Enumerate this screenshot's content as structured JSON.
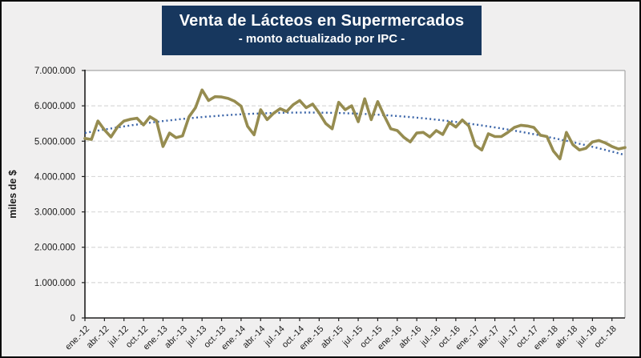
{
  "chart_data": {
    "type": "line",
    "title": "Venta de Lácteos en Supermercados",
    "subtitle": "- monto actualizado por IPC -",
    "ylabel": "miles de $",
    "ylim": [
      0,
      7000000
    ],
    "ytick_step": 1000000,
    "ytick_labels": [
      "0",
      "1.000.000",
      "2.000.000",
      "3.000.000",
      "4.000.000",
      "5.000.000",
      "6.000.000",
      "7.000.000"
    ],
    "xtick_labels": [
      "ene.-12",
      "abr.-12",
      "jul.-12",
      "oct.-12",
      "ene.-13",
      "abr.-13",
      "jul.-13",
      "oct.-13",
      "ene.-14",
      "abr.-14",
      "jul.-14",
      "oct.-14",
      "ene.-15",
      "abr.-15",
      "jul.-15",
      "oct.-15",
      "ene.-16",
      "abr.-16",
      "jul.-16",
      "oct.-16",
      "ene.-17",
      "abr.-17",
      "jul.-17",
      "oct.-17",
      "ene.-18",
      "abr.-18",
      "jul.-18",
      "oct.-18"
    ],
    "xtick_label_interval_months": 3,
    "x_months_start": "ene-12",
    "x_months_end": "dic-18",
    "grid": "horizontal-dashed",
    "legend": "none",
    "series": [
      {
        "id": "venta-lacteos-actualizada-ipc",
        "color": "#968C50",
        "values_miles_de_pesos": [
          5080,
          5050,
          5570,
          5320,
          5120,
          5400,
          5570,
          5620,
          5650,
          5460,
          5690,
          5580,
          4850,
          5230,
          5100,
          5150,
          5690,
          5950,
          6450,
          6150,
          6260,
          6250,
          6210,
          6130,
          5990,
          5420,
          5180,
          5890,
          5610,
          5790,
          5920,
          5840,
          6030,
          6150,
          5950,
          6050,
          5800,
          5500,
          5350,
          6100,
          5890,
          6000,
          5550,
          6200,
          5610,
          6120,
          5720,
          5350,
          5300,
          5110,
          4980,
          5230,
          5250,
          5120,
          5300,
          5190,
          5530,
          5400,
          5600,
          5430,
          4880,
          4750,
          5210,
          5130,
          5130,
          5250,
          5390,
          5450,
          5430,
          5390,
          5170,
          5130,
          4720,
          4500,
          5250,
          4900,
          4750,
          4800,
          4980,
          5020,
          4950,
          4850,
          4780,
          4820
        ],
        "values_scale_note": "axis shows values x1000 (miles de $); plotted values are value*1000 on the 0-7.000.000 axis"
      }
    ],
    "trendline": {
      "shape": "polynomial-order-2",
      "style": "dotted",
      "color": "#3A64A8",
      "poly_miles_de_pesos": {
        "a": 5232000,
        "b": 34000,
        "c": -500
      },
      "approx_points": {
        "start": 5230000,
        "peak": 5810000,
        "peak_month_index": 34,
        "end": 4610000
      }
    },
    "colors": {
      "background": "#F0EFEF",
      "plot_background": "#FFFFFF",
      "title_box": "#17375E",
      "title_text": "#FFFFFF",
      "axis": "#1F1F1F",
      "tick_label": "#1A1A1A",
      "gridline": "#D9D9D9",
      "plot_border": "#A6A6A6",
      "outer_border": "#0B0B0B"
    }
  }
}
